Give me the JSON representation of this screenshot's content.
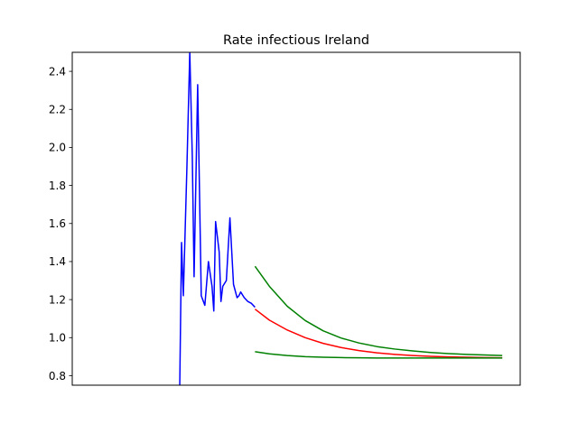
{
  "chart_data": {
    "type": "line",
    "title": "Rate infectious Ireland",
    "xlabel": "",
    "ylabel": "",
    "x_ticks_shown": false,
    "xlim": [
      -5,
      120
    ],
    "ylim": [
      0.75,
      2.5
    ],
    "yticks": [
      0.8,
      1.0,
      1.2,
      1.4,
      1.6,
      1.8,
      2.0,
      2.2,
      2.4
    ],
    "ytick_labels": [
      "0.8",
      "1.0",
      "1.2",
      "1.4",
      "1.6",
      "1.8",
      "2.0",
      "2.2",
      "2.4"
    ],
    "grid": false,
    "legend": "none",
    "series": [
      {
        "color": "#0000ff",
        "x": [
          25.0,
          25.5,
          26.0,
          27.0,
          27.8,
          28.5,
          29.0,
          30.0,
          31.0,
          32.0,
          33.0,
          34.0,
          34.5,
          35.0,
          36.0,
          36.5,
          37.0,
          38.0,
          39.0,
          40.0,
          41.0,
          41.5,
          42.0,
          43.0,
          44.0,
          45.0,
          46.0,
          47.0,
          48.0,
          49.0
        ],
        "y": [
          0.75,
          1.5,
          1.22,
          1.9,
          2.5,
          1.95,
          1.32,
          2.33,
          1.22,
          1.17,
          1.4,
          1.27,
          1.14,
          1.61,
          1.45,
          1.19,
          1.27,
          1.3,
          1.63,
          1.28,
          1.21,
          1.22,
          1.24,
          1.21,
          1.19,
          1.18,
          1.16,
          null,
          null,
          null
        ]
      },
      {
        "color": "#ff0000",
        "x": [
          46,
          50,
          55,
          60,
          65,
          70,
          75,
          80,
          85,
          90,
          95,
          100,
          105,
          110,
          115
        ],
        "y": [
          1.15,
          1.092,
          1.04,
          1.0,
          0.97,
          0.948,
          0.932,
          0.92,
          0.912,
          0.906,
          0.902,
          0.899,
          0.897,
          0.895,
          0.894
        ]
      },
      {
        "color": "#008000",
        "x": [
          46,
          50,
          55,
          60,
          65,
          70,
          75,
          80,
          85,
          90,
          95,
          100,
          105,
          110,
          115
        ],
        "y": [
          1.375,
          1.27,
          1.165,
          1.09,
          1.036,
          0.998,
          0.972,
          0.953,
          0.94,
          0.93,
          0.922,
          0.916,
          0.912,
          0.909,
          0.906
        ]
      },
      {
        "color": "#008000",
        "x": [
          46,
          50,
          55,
          60,
          65,
          70,
          75,
          80,
          85,
          90,
          95,
          100,
          105,
          110,
          115
        ],
        "y": [
          0.926,
          0.915,
          0.906,
          0.9,
          0.897,
          0.895,
          0.894,
          0.893,
          0.893,
          0.893,
          0.893,
          0.893,
          0.893,
          0.893,
          0.893
        ]
      }
    ]
  }
}
